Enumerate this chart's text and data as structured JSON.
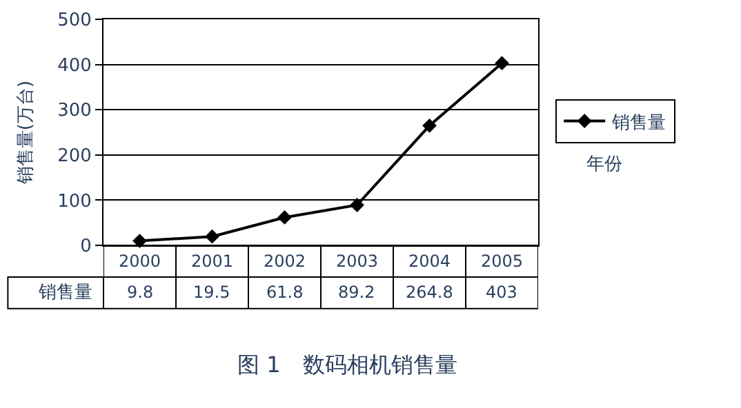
{
  "chart_data": {
    "type": "line",
    "title": "图 1　数码相机销售量",
    "xlabel": "年份",
    "ylabel": "销售量(万台)",
    "categories": [
      "2000",
      "2001",
      "2002",
      "2003",
      "2004",
      "2005"
    ],
    "series": [
      {
        "name": "销售量",
        "color": "#000000",
        "values": [
          9.8,
          19.5,
          61.8,
          89.2,
          264.8,
          403
        ]
      }
    ],
    "ylim": [
      0,
      500
    ],
    "yticks": [
      0,
      100,
      200,
      300,
      400,
      500
    ],
    "grid": "y",
    "legend": "right",
    "marker": "diamond",
    "line_style": "solid",
    "data_labels": true
  }
}
